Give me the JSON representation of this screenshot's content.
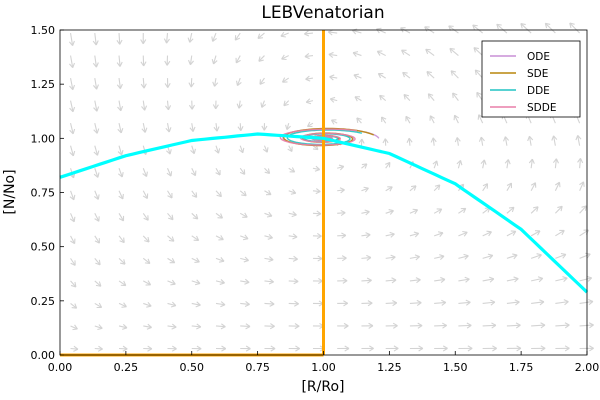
{
  "chart_data": {
    "type": "line",
    "title": "LEBVenatorian",
    "xlabel": "[R/Ro]",
    "ylabel": "[N/No]",
    "xlim": [
      0,
      2
    ],
    "ylim": [
      0,
      1.5
    ],
    "xticks": [
      "0.00",
      "0.25",
      "0.50",
      "0.75",
      "1.00",
      "1.25",
      "1.50",
      "1.75",
      "2.00"
    ],
    "yticks": [
      "0.00",
      "0.25",
      "0.50",
      "0.75",
      "1.00",
      "1.25",
      "1.50"
    ],
    "grid": false,
    "legend_position": "top-right",
    "series": [
      {
        "name": "ODE",
        "color": "#c98fd6"
      },
      {
        "name": "SDE",
        "color": "#b8860b"
      },
      {
        "name": "DDE",
        "color": "#20c3c3"
      },
      {
        "name": "SDDE",
        "color": "#e87fa8"
      }
    ],
    "vector_field_color": "#d3d3d3",
    "nullclines": [
      {
        "kind": "vertical",
        "x": 1.0,
        "color": "#ffa500"
      },
      {
        "kind": "horizontal",
        "y": 0.0,
        "color": "#ffa500"
      },
      {
        "kind": "curve",
        "color": "#00ffff",
        "x": [
          0,
          0.25,
          0.5,
          0.75,
          1.0,
          1.25,
          1.5,
          1.75,
          2.0
        ],
        "y": [
          0.82,
          0.92,
          0.99,
          1.02,
          1.0,
          0.93,
          0.79,
          0.58,
          0.29
        ]
      }
    ]
  }
}
